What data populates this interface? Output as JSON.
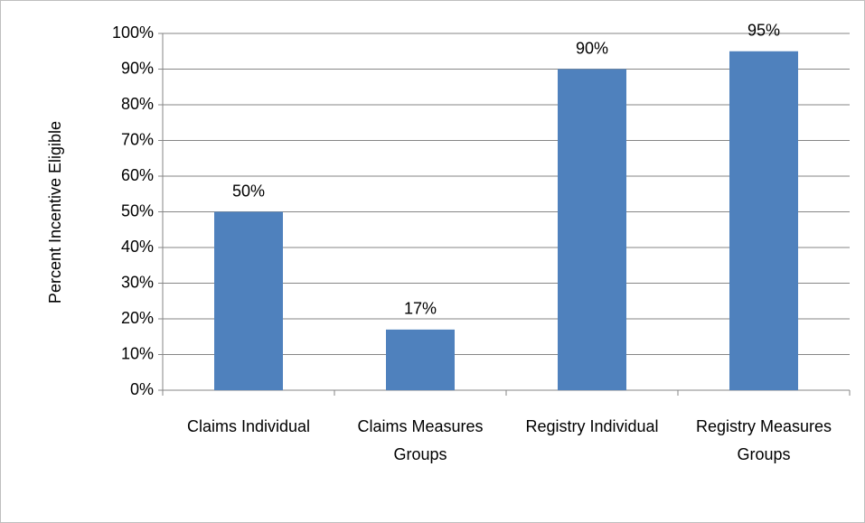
{
  "chart_data": {
    "type": "bar",
    "y_axis_label": "Percent Incentive Eligible",
    "categories": [
      "Claims Individual",
      "Claims Measures Groups",
      "Registry Individual",
      "Registry Measures Groups"
    ],
    "values": [
      50,
      17,
      90,
      95
    ],
    "value_labels": [
      "50%",
      "17%",
      "90%",
      "95%"
    ],
    "color": "#4f81bd",
    "ylim": [
      0,
      100
    ],
    "yticks": [
      {
        "value": 0,
        "label": "0%"
      },
      {
        "value": 10,
        "label": "10%"
      },
      {
        "value": 20,
        "label": "20%"
      },
      {
        "value": 30,
        "label": "30%"
      },
      {
        "value": 40,
        "label": "40%"
      },
      {
        "value": 50,
        "label": "50%"
      },
      {
        "value": 60,
        "label": "60%"
      },
      {
        "value": 70,
        "label": "70%"
      },
      {
        "value": 80,
        "label": "80%"
      },
      {
        "value": 90,
        "label": "90%"
      },
      {
        "value": 100,
        "label": "100%"
      }
    ],
    "grid": true
  }
}
